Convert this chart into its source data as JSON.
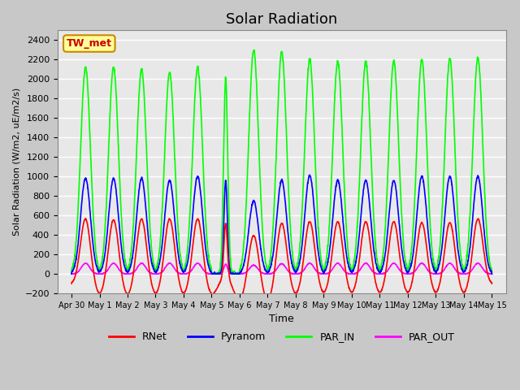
{
  "title": "Solar Radiation",
  "ylabel": "Solar Radiation (W/m2, uE/m2/s)",
  "xlabel": "Time",
  "station_label": "TW_met",
  "ylim": [
    -200,
    2500
  ],
  "yticks": [
    -200,
    0,
    200,
    400,
    600,
    800,
    1000,
    1200,
    1400,
    1600,
    1800,
    2000,
    2200,
    2400
  ],
  "start_day": -0.5,
  "end_day": 15.5,
  "xtick_labels": [
    "Apr 30",
    "May 1",
    "May 2",
    "May 3",
    "May 4",
    "May 5",
    "May 6",
    "May 7",
    "May 8",
    "May 9",
    "May 10",
    "May 11",
    "May 12",
    "May 13",
    "May 14",
    "May 15"
  ],
  "xtick_positions": [
    0,
    1,
    2,
    3,
    4,
    5,
    6,
    7,
    8,
    9,
    10,
    11,
    12,
    13,
    14,
    15
  ],
  "rnet_peaks": [
    590,
    590,
    600,
    600,
    600,
    560,
    440,
    560,
    570,
    570,
    570,
    570,
    560,
    560,
    590
  ],
  "pyra_peaks": [
    980,
    980,
    980,
    960,
    1000,
    960,
    750,
    960,
    1010,
    960,
    960,
    960,
    1000,
    1000,
    1000
  ],
  "par_in_peaks": [
    2120,
    2120,
    2100,
    2070,
    2120,
    2000,
    2300,
    2280,
    2200,
    2180,
    2180,
    2180,
    2200,
    2210,
    2220
  ],
  "par_out_peaks": [
    110,
    110,
    110,
    110,
    110,
    100,
    90,
    105,
    110,
    110,
    110,
    110,
    110,
    110,
    110
  ],
  "rnet_dips": [
    -100,
    -110,
    -110,
    -100,
    -110,
    -100,
    -170,
    -110,
    -100,
    -100,
    -100,
    -100,
    -100,
    -100,
    -100
  ],
  "color_rnet": "#ff0000",
  "color_pyra": "#0000ff",
  "color_par_in": "#00ff00",
  "color_par_out": "#ff00ff",
  "fig_facecolor": "#c8c8c8",
  "ax_facecolor": "#e8e8e8",
  "grid_color": "#ffffff",
  "station_text_color": "#cc0000",
  "station_box_facecolor": "#ffff99",
  "station_box_edgecolor": "#cc8800"
}
